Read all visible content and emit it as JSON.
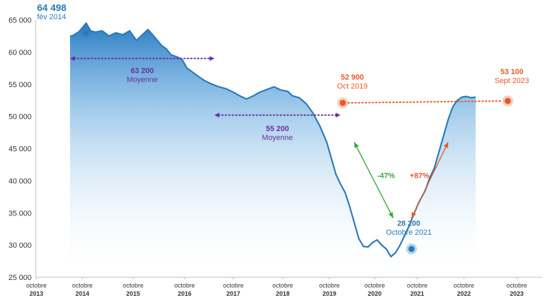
{
  "chart_data": {
    "type": "area",
    "title": "",
    "xlabel": "",
    "ylabel": "",
    "ylim": [
      25000,
      65000
    ],
    "grid": false,
    "y_ticks": [
      "65 000",
      "60 000",
      "55 000",
      "50 000",
      "45 000",
      "40 000",
      "35 000",
      "30 000",
      "25 000"
    ],
    "x_ticks": [
      {
        "line1": "octobre",
        "line2": "2013"
      },
      {
        "line1": "octobre",
        "line2": "2014"
      },
      {
        "line1": "octobre",
        "line2": "2015"
      },
      {
        "line1": "octobre",
        "line2": "2016"
      },
      {
        "line1": "octobre",
        "line2": "2017"
      },
      {
        "line1": "octobre",
        "line2": "2018"
      },
      {
        "line1": "octobre",
        "line2": "2019"
      },
      {
        "line1": "octobre",
        "line2": "2020"
      },
      {
        "line1": "octobre",
        "line2": "2021"
      },
      {
        "line1": "octobre",
        "line2": "2022"
      },
      {
        "line1": "octobre",
        "line2": "2023"
      }
    ],
    "series": [
      {
        "color": "#2a7ab8",
        "x": [
          2013.75,
          2013.8,
          2013.95,
          2014.1,
          2014.2,
          2014.3,
          2014.45,
          2014.6,
          2014.75,
          2014.9,
          2015.05,
          2015.2,
          2015.3,
          2015.45,
          2015.6,
          2015.75,
          2015.85,
          2015.95,
          2016.1,
          2016.2,
          2016.3,
          2016.4,
          2016.55,
          2016.7,
          2016.85,
          2017.0,
          2017.15,
          2017.3,
          2017.45,
          2017.6,
          2017.75,
          2017.9,
          2018.05,
          2018.2,
          2018.35,
          2018.5,
          2018.6,
          2018.75,
          2018.9,
          2019.05,
          2019.2,
          2019.35,
          2019.45,
          2019.55,
          2019.65,
          2019.75,
          2019.85,
          2019.95,
          2020.05,
          2020.15,
          2020.25,
          2020.35,
          2020.45,
          2020.55,
          2020.65,
          2020.75,
          2020.85,
          2020.95,
          2021.05,
          2021.15,
          2021.25,
          2021.35,
          2021.5,
          2021.6,
          2021.7,
          2021.8,
          2021.9,
          2022.0,
          2022.1,
          2022.2,
          2022.3,
          2022.4,
          2022.5,
          2022.6
        ],
        "values": [
          62500,
          62500,
          63200,
          64498,
          63300,
          63100,
          63300,
          62500,
          63000,
          62700,
          63300,
          61800,
          62500,
          63500,
          62300,
          61000,
          60500,
          59600,
          59200,
          58800,
          57500,
          57000,
          56200,
          55500,
          55000,
          54600,
          54300,
          53800,
          53200,
          52700,
          53200,
          53800,
          54200,
          54600,
          54100,
          53900,
          53200,
          52900,
          52000,
          50500,
          48500,
          46000,
          43500,
          41000,
          39500,
          38200,
          36000,
          33500,
          31000,
          29800,
          29700,
          30400,
          30800,
          30000,
          29400,
          28200,
          28800,
          30000,
          31500,
          33000,
          34800,
          36500,
          38500,
          40500,
          42000,
          44500,
          47000,
          49500,
          51500,
          52500,
          53000,
          53100,
          52900,
          53000
        ]
      }
    ],
    "annotations": {
      "peak": {
        "value": "64 498",
        "label": "fév 2014",
        "x": 2014.1,
        "y": 63000
      },
      "avg1": {
        "value": "63 200",
        "label": "Moyenne",
        "x_from": 2013.75,
        "x_to": 2016.9,
        "y": 59000
      },
      "avg2": {
        "value": "55 200",
        "label": "Moyenne",
        "x_from": 2016.9,
        "x_to": 2019.65,
        "y": 50200
      },
      "oct2019": {
        "value": "52 900",
        "label": "Oct 2019",
        "x": 2019.7,
        "y": 52100
      },
      "oct2021": {
        "value": "28 200",
        "label": "Octobre 2021",
        "x": 2021.2,
        "y": 29400
      },
      "sept2023": {
        "value": "53 100",
        "label": "Sept 2023",
        "x": 2023.3,
        "y": 52400
      },
      "drop": {
        "label": "-47%",
        "x_from": 2019.95,
        "y_from": 46000,
        "x_to": 2020.8,
        "y_to": 34200
      },
      "rise": {
        "label": "+87%",
        "x_from": 2021.2,
        "y_from": 34200,
        "x_to": 2022.0,
        "y_to": 46000
      }
    },
    "colors": {
      "line": "#2a7ab8",
      "fill_top": "#1e76c0",
      "fill_bottom": "#ffffff",
      "average": "#6a2ea0",
      "highlight": "#e8582a",
      "drop": "#3aa83a",
      "rise": "#e8582a",
      "peak_text": "#2a7ab8"
    }
  }
}
